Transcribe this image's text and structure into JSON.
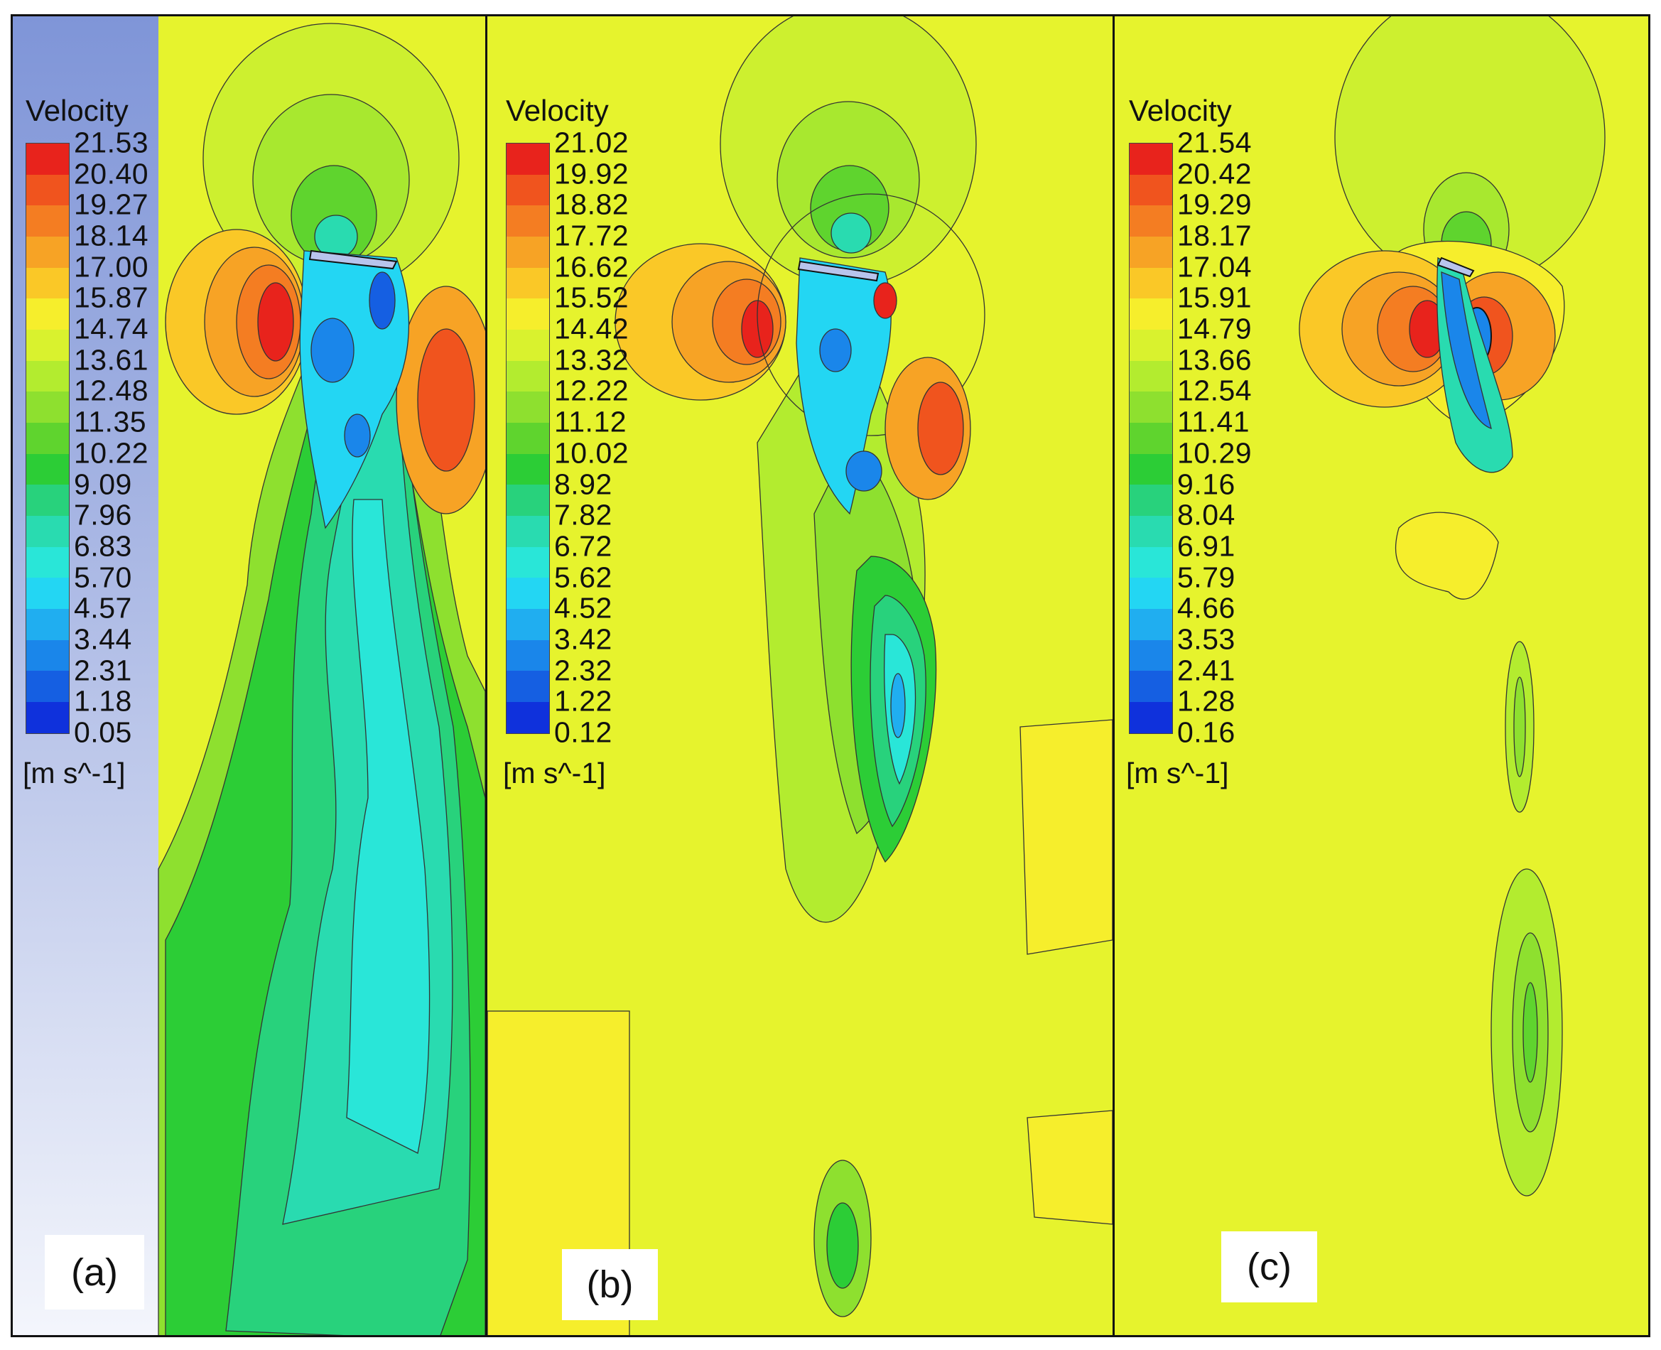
{
  "figure": {
    "panels": [
      {
        "id": "a",
        "label": "(a)",
        "legend": {
          "title": "Velocity",
          "unit": "[m s^-1]",
          "ticks": [
            "21.53",
            "20.40",
            "19.27",
            "18.14",
            "17.00",
            "15.87",
            "14.74",
            "13.61",
            "12.48",
            "11.35",
            "10.22",
            "9.09",
            "7.96",
            "6.83",
            "5.70",
            "4.57",
            "3.44",
            "2.31",
            "1.18",
            "0.05"
          ]
        }
      },
      {
        "id": "b",
        "label": "(b)",
        "legend": {
          "title": "Velocity",
          "unit": "[m s^-1]",
          "ticks": [
            "21.02",
            "19.92",
            "18.82",
            "17.72",
            "16.62",
            "15.52",
            "14.42",
            "13.32",
            "12.22",
            "11.12",
            "10.02",
            "8.92",
            "7.82",
            "6.72",
            "5.62",
            "4.52",
            "3.42",
            "2.32",
            "1.22",
            "0.12"
          ]
        }
      },
      {
        "id": "c",
        "label": "(c)",
        "legend": {
          "title": "Velocity",
          "unit": "[m s^-1]",
          "ticks": [
            "21.54",
            "20.42",
            "19.29",
            "18.17",
            "17.04",
            "15.91",
            "14.79",
            "13.66",
            "12.54",
            "11.41",
            "10.29",
            "9.16",
            "8.04",
            "6.91",
            "5.79",
            "4.66",
            "3.53",
            "2.41",
            "1.28",
            "0.16"
          ]
        }
      }
    ],
    "colormap": [
      "#e8231c",
      "#f0541e",
      "#f47d22",
      "#f7a325",
      "#fac827",
      "#f6ee2c",
      "#d9f22e",
      "#b3ec2f",
      "#8ee02f",
      "#5fd42e",
      "#2ccd36",
      "#28d27c",
      "#29dbb0",
      "#29e6d8",
      "#23d6f3",
      "#20aef0",
      "#1a86ea",
      "#155fe2",
      "#0f31dc"
    ],
    "background_colors": {
      "yellow_field": "#eef52c",
      "green_field": "#b5ec2e",
      "blade": "#b8c4ec",
      "left_strip_top": "#7f95d8",
      "left_strip_bottom": "#f4f6fc"
    }
  }
}
